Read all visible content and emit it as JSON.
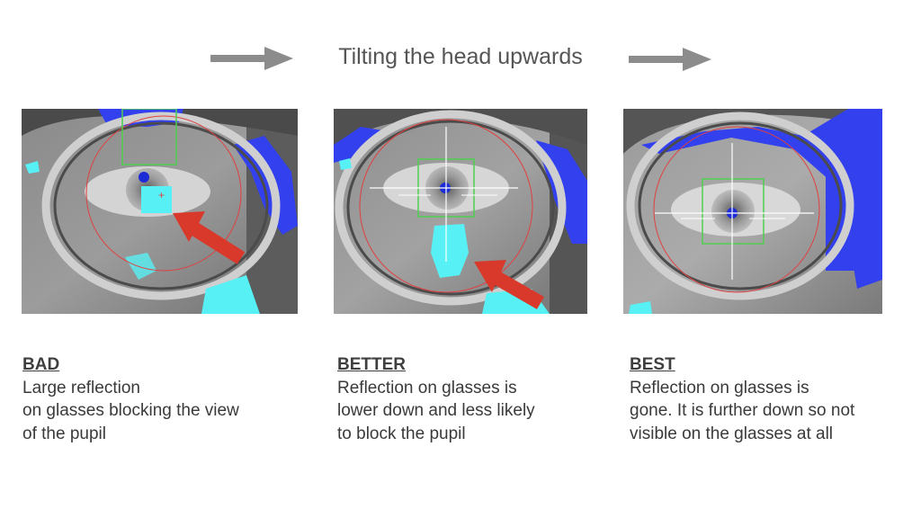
{
  "header": {
    "title": "Tilting the head upwards",
    "arrow_color": "#8c8c8c"
  },
  "panels": [
    {
      "id": "bad",
      "heading": "BAD",
      "lines": [
        "Large reflection",
        "on glasses blocking the view",
        "of the pupil"
      ]
    },
    {
      "id": "better",
      "heading": "BETTER",
      "lines": [
        "Reflection on glasses is",
        "lower down and less likely",
        "to block the pupil"
      ]
    },
    {
      "id": "best",
      "heading": "BEST",
      "lines": [
        "Reflection on glasses is",
        "gone. It is further down so not",
        "visible on the glasses at all"
      ]
    }
  ],
  "colors": {
    "pointer_arrow": "#d9392a",
    "reflection": "#57f0f4",
    "pupil_marker": "#2a3cf0",
    "overlay_blue": "#3340ee",
    "tracking_circle": "#e04040",
    "tracking_box": "#4fcf4f"
  }
}
